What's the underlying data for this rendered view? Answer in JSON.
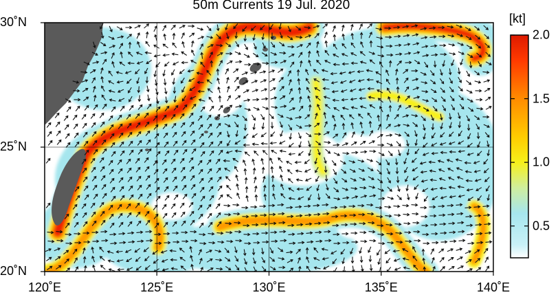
{
  "title": "50m Currents  19 Jul. 2020",
  "map": {
    "extent": {
      "lon": [
        120,
        140
      ],
      "lat": [
        20,
        30
      ]
    },
    "lon_ticks": [
      {
        "value": 120,
        "label": "120˚E"
      },
      {
        "value": 125,
        "label": "125˚E"
      },
      {
        "value": 130,
        "label": "130˚E"
      },
      {
        "value": 135,
        "label": "135˚E"
      },
      {
        "value": 140,
        "label": "140˚E"
      }
    ],
    "lat_ticks": [
      {
        "value": 30,
        "label": "30˚N"
      },
      {
        "value": 25,
        "label": "25˚N"
      },
      {
        "value": 20,
        "label": "20˚N"
      }
    ],
    "grid": true,
    "land_color": "#5a5a5a",
    "features": [
      "Taiwan",
      "East China coast",
      "Ryukyu Islands",
      "Kuroshio Current",
      "Subtropical Countercurrent"
    ]
  },
  "colorbar": {
    "unit_label": "[kt]",
    "range": [
      0.25,
      2.0
    ],
    "ticks": [
      {
        "value": 2.0,
        "label": "2.0"
      },
      {
        "value": 1.5,
        "label": "1.5"
      },
      {
        "value": 1.0,
        "label": "1.0"
      },
      {
        "value": 0.5,
        "label": "0.5"
      }
    ],
    "stops": [
      {
        "value": 0.25,
        "color": "#ffffff"
      },
      {
        "value": 0.35,
        "color": "#c9f1f7"
      },
      {
        "value": 0.6,
        "color": "#a6e6ee"
      },
      {
        "value": 0.8,
        "color": "#cfee9e"
      },
      {
        "value": 1.0,
        "color": "#f7f01a"
      },
      {
        "value": 1.2,
        "color": "#ffcc00"
      },
      {
        "value": 1.5,
        "color": "#ff8c00"
      },
      {
        "value": 1.8,
        "color": "#ff3a00"
      },
      {
        "value": 2.0,
        "color": "#dd1a00"
      }
    ]
  }
}
